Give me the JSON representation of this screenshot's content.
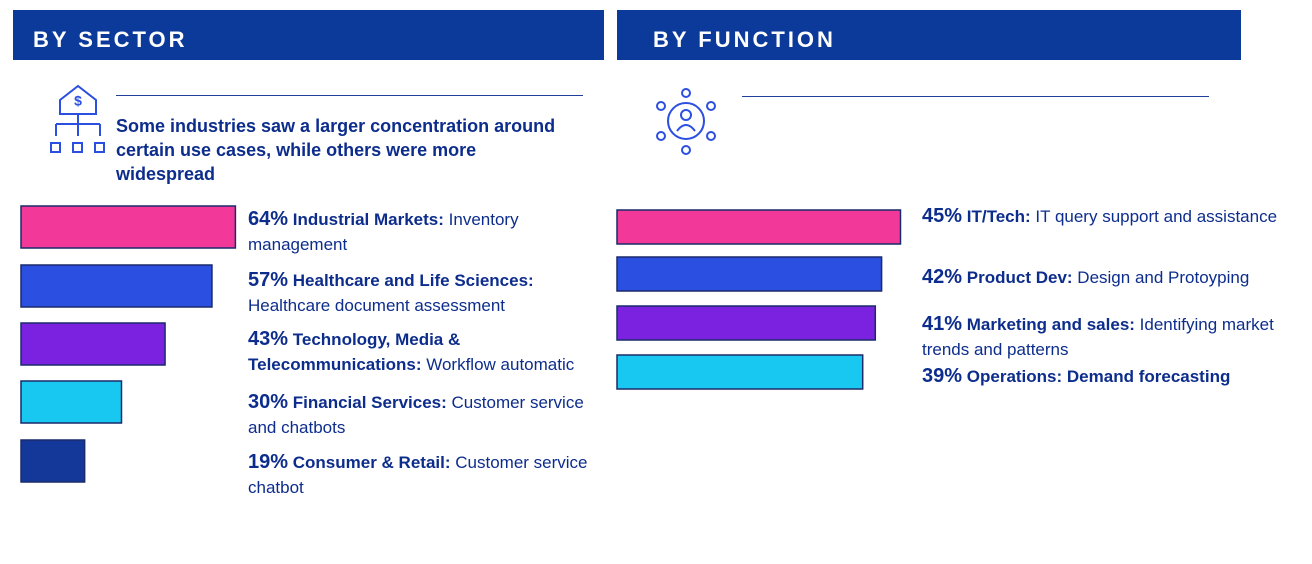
{
  "chart_data": [
    {
      "type": "bar",
      "title": "BY SECTOR",
      "subtitle": "Some industries saw a larger concentration around certain use cases, while others were more widespread",
      "categories": [
        "Industrial Markets:",
        "Healthcare and Life Sciences:",
        "Technology, Media & Telecommunications:",
        "Financial Services:",
        "Consumer & Retail:"
      ],
      "descriptions": [
        "Inventory management",
        "Healthcare document assessment",
        "Workflow automatic",
        "Customer service and chatbots",
        "Customer service chatbot"
      ],
      "values": [
        64,
        57,
        43,
        30,
        19
      ],
      "value_labels": [
        "64%",
        "57%",
        "43%",
        "30%",
        "19%"
      ],
      "colors": [
        "#f2399a",
        "#2b4fe0",
        "#7b22e0",
        "#19c8f0",
        "#14389a"
      ]
    },
    {
      "type": "bar",
      "title": "BY FUNCTION",
      "categories": [
        "IT/Tech:",
        "Product Dev:",
        "Marketing and sales:",
        "Operations:"
      ],
      "descriptions": [
        "IT query support and assistance",
        "Design and Protoyping",
        "Identifying market trends and patterns",
        "Demand forecasting"
      ],
      "values": [
        45,
        42,
        41,
        39
      ],
      "value_labels": [
        "45%",
        "42%",
        "41%",
        "39%"
      ],
      "colors": [
        "#f2399a",
        "#2b4fe0",
        "#7b22e0",
        "#19c8f0"
      ]
    }
  ]
}
